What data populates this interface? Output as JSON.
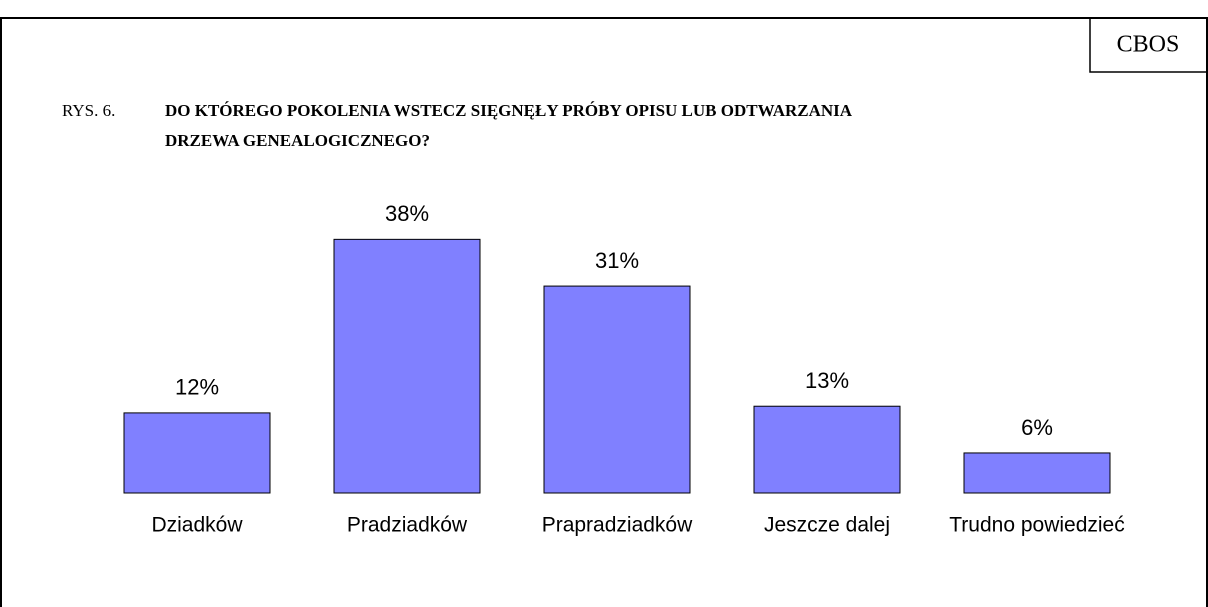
{
  "chart_data": {
    "type": "bar",
    "source": "CBOS",
    "figure_label": "RYS. 6.",
    "title": [
      "DO KTÓREGO POKOLENIA WSTECZ SIĘGNĘŁY PRÓBY OPISU LUB ODTWARZANIA",
      "DRZEWA GENEALOGICZNEGO?"
    ],
    "categories": [
      "Dziadków",
      "Pradziadków",
      "Prapradziadków",
      "Jeszcze dalej",
      "Trudno powiedzieć"
    ],
    "values": [
      12,
      38,
      31,
      13,
      6
    ],
    "value_labels": [
      "12%",
      "38%",
      "31%",
      "13%",
      "6%"
    ],
    "color": "#8080ff",
    "ylim": [
      0,
      40
    ]
  }
}
